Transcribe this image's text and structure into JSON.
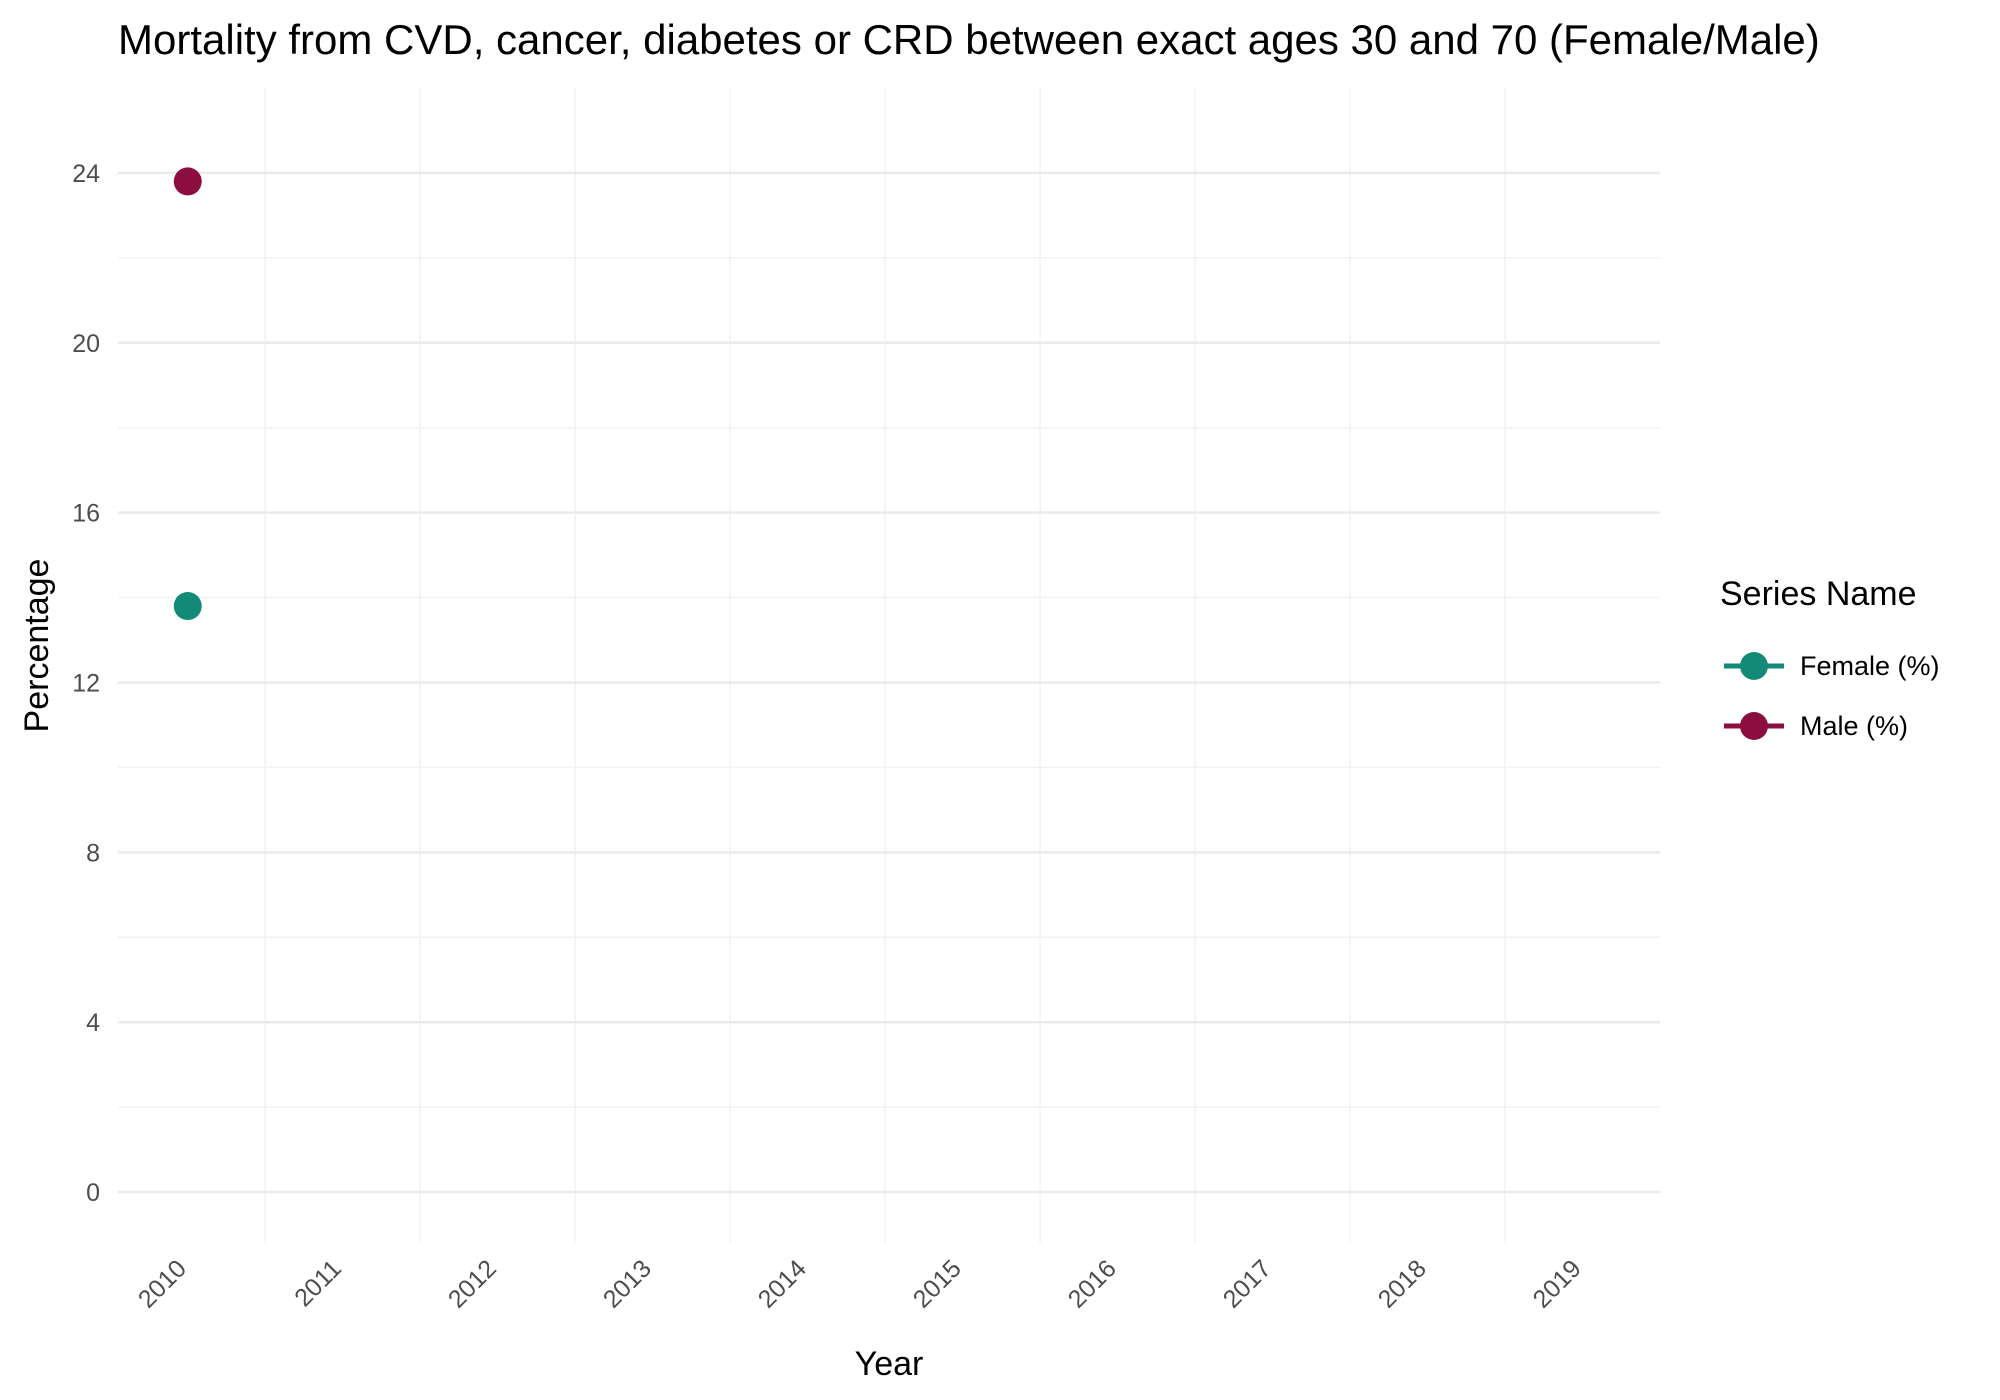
{
  "chart_data": {
    "type": "scatter",
    "title": "Mortality from CVD, cancer, diabetes or CRD between exact ages 30 and 70 (Female/Male)",
    "xlabel": "Year",
    "ylabel": "Percentage",
    "x_categories": [
      "2010",
      "2011",
      "2012",
      "2013",
      "2014",
      "2015",
      "2016",
      "2017",
      "2018",
      "2019"
    ],
    "y_ticks": [
      0,
      4,
      8,
      12,
      16,
      20,
      24
    ],
    "ylim": [
      -1.2,
      26
    ],
    "grid": true,
    "legend": {
      "title": "Series Name",
      "position": "right"
    },
    "series": [
      {
        "name": "Female (%)",
        "color": "#138a78",
        "points": [
          {
            "x": "2010",
            "y": 13.8
          }
        ]
      },
      {
        "name": "Male (%)",
        "color": "#8c0d3f",
        "points": [
          {
            "x": "2010",
            "y": 23.8
          }
        ]
      }
    ]
  }
}
